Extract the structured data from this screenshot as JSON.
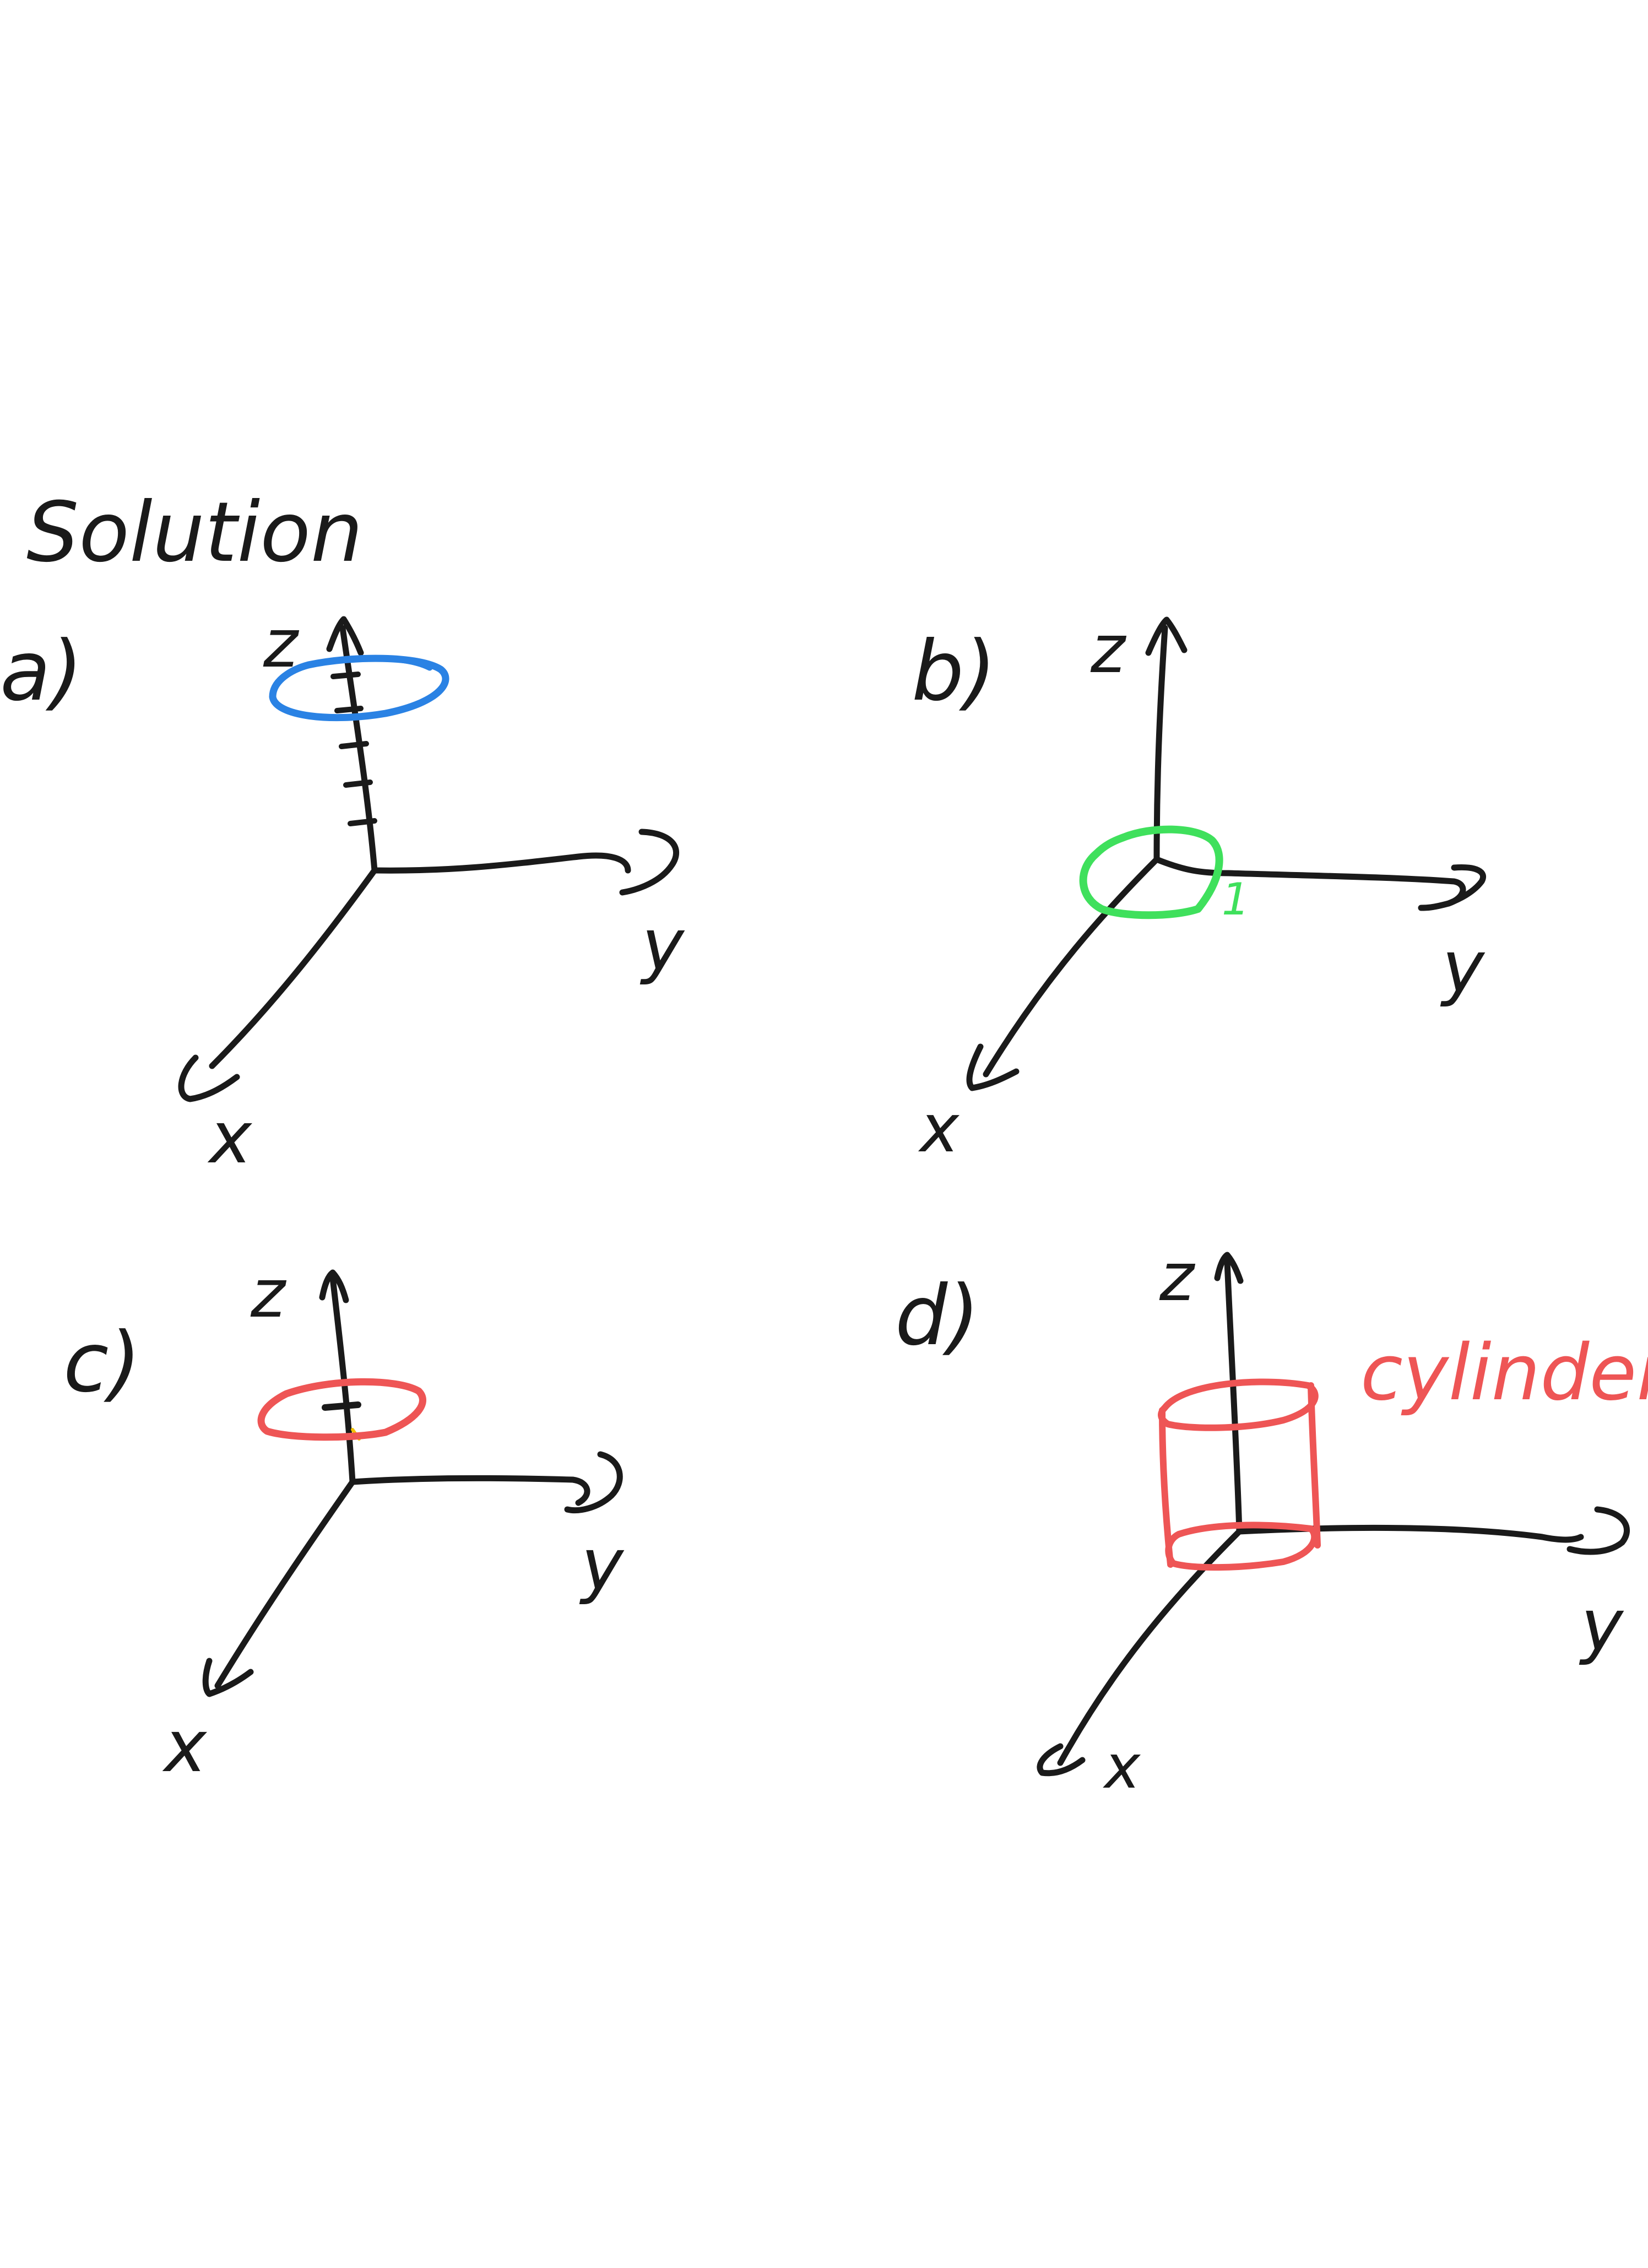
{
  "title": "Solution",
  "colors": {
    "ink": "#1a1a1a",
    "blue": "#2a82e4",
    "green": "#3fe05c",
    "red": "#ee5555",
    "yellow": "#f2c200",
    "background": "#ffffff"
  },
  "panels": [
    {
      "id": "a",
      "label": "a)",
      "axes": {
        "x": "x",
        "y": "y",
        "z": "z"
      },
      "shape": "circle in the plane z = const (blue)",
      "tick_marks": 5
    },
    {
      "id": "b",
      "label": "b)",
      "axes": {
        "x": "x",
        "y": "y",
        "z": "z"
      },
      "shape": "circle at origin (green)",
      "annotation": "1"
    },
    {
      "id": "c",
      "label": "c)",
      "axes": {
        "x": "x",
        "y": "y",
        "z": "z"
      },
      "shape": "circle slightly above origin (red)",
      "tick_marks": 1
    },
    {
      "id": "d",
      "label": "d)",
      "axes": {
        "x": "x",
        "y": "y",
        "z": "z"
      },
      "shape": "cylinder around z-axis (red)",
      "annotation": "cylinder"
    }
  ]
}
